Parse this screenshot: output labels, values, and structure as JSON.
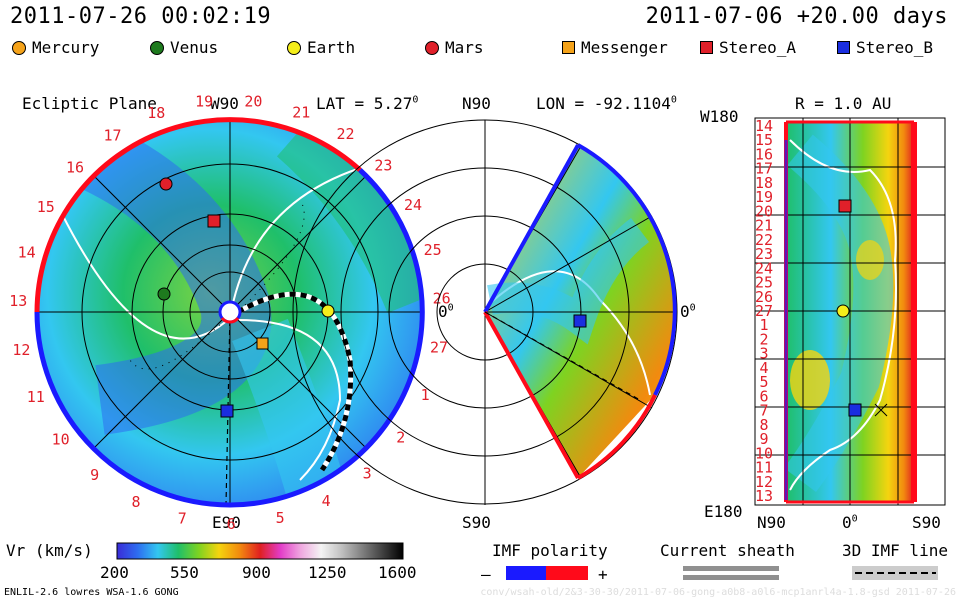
{
  "header": {
    "datetime": "2011-07-26 00:02:19",
    "forecast": "2011-07-06 +20.00 days"
  },
  "legend": [
    {
      "label": "Mercury",
      "shape": "dot",
      "color": "#f5a31a"
    },
    {
      "label": "Venus",
      "shape": "dot",
      "color": "#1e7a1e"
    },
    {
      "label": "Earth",
      "shape": "dot",
      "color": "#f5ee1a"
    },
    {
      "label": "Mars",
      "shape": "dot",
      "color": "#e0202a"
    },
    {
      "label": "Messenger",
      "shape": "square",
      "color": "#f5a31a"
    },
    {
      "label": "Stereo_A",
      "shape": "square",
      "color": "#e0202a"
    },
    {
      "label": "Stereo_B",
      "shape": "square",
      "color": "#1a2ee0"
    }
  ],
  "panel_left": {
    "title": "Ecliptic Plane",
    "top_label": "W90",
    "lat_label": "LAT = 5.27",
    "lat_deg": "0",
    "right_label": "0",
    "right_deg": "0",
    "bottom_label": "E90",
    "rotation_numbers": [
      "19",
      "20",
      "21",
      "22",
      "23",
      "24",
      "25",
      "26",
      "27",
      "1",
      "2",
      "3",
      "4",
      "5",
      "6",
      "7",
      "8",
      "9",
      "10",
      "11",
      "12",
      "13",
      "14",
      "15",
      "16",
      "17",
      "18"
    ]
  },
  "panel_middle": {
    "top_left_label": "N90",
    "lon_label": "LON = -92.1104",
    "lon_deg": "0",
    "right_label": "0",
    "right_deg": "0",
    "bottom_label": "S90"
  },
  "panel_right": {
    "top_left_label": "W180",
    "r_label": "R = 1.0 AU",
    "bottom_left_label": "E180",
    "x_labels": [
      "N90",
      "0",
      "S90"
    ],
    "x_deg": "0",
    "rotation_numbers": [
      "14",
      "15",
      "16",
      "17",
      "18",
      "19",
      "20",
      "21",
      "22",
      "23",
      "24",
      "25",
      "26",
      "27",
      "1",
      "2",
      "3",
      "4",
      "5",
      "6",
      "7",
      "8",
      "9",
      "10",
      "11",
      "12",
      "13"
    ]
  },
  "colorbar": {
    "title": "Vr (km/s)",
    "ticks": [
      "200",
      "550",
      "900",
      "1250",
      "1600"
    ],
    "stops": [
      "#3a2cd8",
      "#2e6cf0",
      "#33c7f0",
      "#1fbf6a",
      "#7ed321",
      "#f5d40f",
      "#f28a0f",
      "#e02020",
      "#e33cc8",
      "#f0a8e0",
      "#f4f4f4",
      "#c0c0c0",
      "#808080",
      "#404040",
      "#000000"
    ]
  },
  "imf_polarity": {
    "title": "IMF polarity",
    "minus": "–",
    "plus": "+",
    "neg_color": "#1a1aff",
    "pos_color": "#ff0a1a"
  },
  "current_sheath": {
    "title": "Current sheath"
  },
  "imf_line": {
    "title": "3D IMF line"
  },
  "footer": {
    "left": "ENLIL-2.6 lowres WSA-1.6 GONG",
    "right": "conv/wsah-old/2&3-30-30/2011-07-06-gong-a0b8-a0l6-mcp1anrl4a-1.8-gsd     2011-07-26"
  }
}
